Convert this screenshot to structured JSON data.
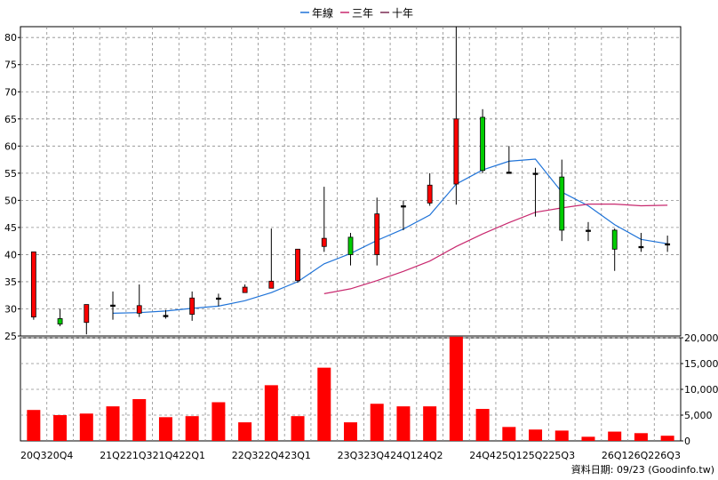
{
  "chart_data": {
    "type": "candlestick",
    "legend": {
      "position": "top-center",
      "items": [
        {
          "name": "年線",
          "color": "#1f73d8"
        },
        {
          "name": "三年",
          "color": "#c8286e"
        },
        {
          "name": "十年",
          "color": "#7a2a52"
        }
      ]
    },
    "colors": {
      "up": "#ff0000",
      "down": "#00cc00",
      "volume": "#ff0000",
      "grid": "#8c8c8c"
    },
    "price_axis": {
      "range": [
        25,
        82
      ],
      "ticks": [
        25,
        30,
        35,
        40,
        45,
        50,
        55,
        60,
        65,
        70,
        75,
        80
      ],
      "grid": true
    },
    "volume_axis": {
      "range": [
        0,
        20000
      ],
      "ticks": [
        "0",
        "5,000",
        "10,000",
        "15,000",
        "20,000"
      ],
      "grid": true
    },
    "x_tick_labels": [
      "20Q3",
      "20Q4",
      "",
      "21Q2",
      "21Q3",
      "21Q4",
      "22Q1",
      "",
      "22Q3",
      "22Q4",
      "23Q1",
      "",
      "23Q3",
      "23Q4",
      "24Q1",
      "24Q2",
      "",
      "24Q4",
      "25Q1",
      "25Q2",
      "25Q3",
      "",
      "26Q1",
      "26Q2",
      "26Q3"
    ],
    "ohlc": [
      {
        "o": 28.5,
        "h": 40.5,
        "l": 28.0,
        "c": 40.5
      },
      {
        "o": 28.2,
        "h": 30.0,
        "l": 26.8,
        "c": 27.2
      },
      {
        "o": 27.5,
        "h": 30.8,
        "l": 25.3,
        "c": 30.8
      },
      {
        "o": 30.7,
        "h": 33.2,
        "l": 28.0,
        "c": 30.7
      },
      {
        "o": 29.2,
        "h": 34.5,
        "l": 28.5,
        "c": 30.6
      },
      {
        "o": 28.8,
        "h": 29.8,
        "l": 28.2,
        "c": 28.8
      },
      {
        "o": 29.0,
        "h": 33.2,
        "l": 27.8,
        "c": 32.0
      },
      {
        "o": 32.0,
        "h": 32.8,
        "l": 30.5,
        "c": 32.0
      },
      {
        "o": 33.0,
        "h": 34.5,
        "l": 33.0,
        "c": 34.0
      },
      {
        "o": 33.8,
        "h": 44.8,
        "l": 33.8,
        "c": 35.1
      },
      {
        "o": 35.2,
        "h": 41.0,
        "l": 34.8,
        "c": 41.0
      },
      {
        "o": 41.5,
        "h": 52.5,
        "l": 40.5,
        "c": 43.0
      },
      {
        "o": 43.2,
        "h": 44.0,
        "l": 38.0,
        "c": 40.0
      },
      {
        "o": 40.0,
        "h": 50.5,
        "l": 38.0,
        "c": 47.5
      },
      {
        "o": 49.0,
        "h": 50.0,
        "l": 44.5,
        "c": 49.0
      },
      {
        "o": 49.5,
        "h": 55.0,
        "l": 49.0,
        "c": 52.8
      },
      {
        "o": 53.0,
        "h": 82.0,
        "l": 49.2,
        "c": 65.0
      },
      {
        "o": 65.3,
        "h": 66.8,
        "l": 55.0,
        "c": 55.5
      },
      {
        "o": 55.2,
        "h": 60.0,
        "l": 55.0,
        "c": 55.2
      },
      {
        "o": 55.0,
        "h": 56.0,
        "l": 47.0,
        "c": 55.0
      },
      {
        "o": 54.3,
        "h": 57.5,
        "l": 42.5,
        "c": 44.5
      },
      {
        "o": 44.5,
        "h": 46.0,
        "l": 42.5,
        "c": 44.5
      },
      {
        "o": 44.5,
        "h": 44.8,
        "l": 37.0,
        "c": 41.0
      },
      {
        "o": 41.5,
        "h": 44.0,
        "l": 40.5,
        "c": 41.5
      },
      {
        "o": 42.0,
        "h": 43.5,
        "l": 40.5,
        "c": 42.0
      }
    ],
    "volume": [
      6000,
      5000,
      5300,
      6700,
      8100,
      4600,
      4800,
      7500,
      3600,
      10800,
      4800,
      14200,
      3600,
      7200,
      6700,
      6700,
      20200,
      6200,
      2700,
      2200,
      2000,
      800,
      1800,
      1500,
      1000
    ],
    "series": [
      {
        "name": "年線",
        "values": [
          null,
          null,
          null,
          29.2,
          29.3,
          29.6,
          30.1,
          30.5,
          31.5,
          33.0,
          35.0,
          38.3,
          40.2,
          42.6,
          44.7,
          47.3,
          53.0,
          55.6,
          57.2,
          57.6,
          51.5,
          49.0,
          45.5,
          42.8,
          42.0
        ]
      },
      {
        "name": "三年",
        "values": [
          null,
          null,
          null,
          null,
          null,
          null,
          null,
          null,
          null,
          null,
          null,
          32.8,
          33.7,
          35.2,
          36.9,
          38.8,
          41.5,
          43.8,
          45.9,
          47.8,
          48.6,
          49.3,
          49.3,
          49.0,
          49.1
        ]
      },
      {
        "name": "十年",
        "values": []
      }
    ],
    "footer": "資料日期: 09/23  (Goodinfo.tw)"
  }
}
